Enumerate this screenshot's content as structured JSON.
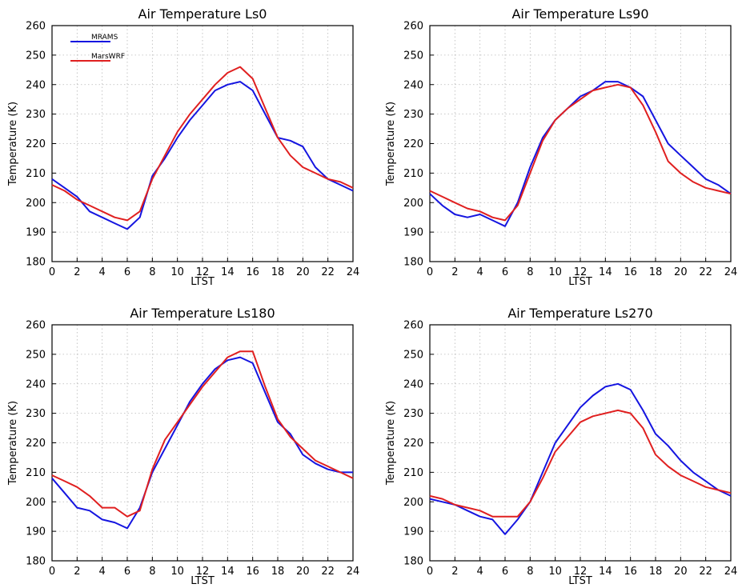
{
  "figure": {
    "legend": {
      "entries": [
        "MRAMS",
        "MarsWRF"
      ],
      "placement": "top-left"
    },
    "colors": {
      "MRAMS": "#1515e0",
      "MarsWRF": "#e02020"
    }
  },
  "chart_data": [
    {
      "type": "line",
      "title": "Air Temperature Ls0",
      "xlabel": "LTST",
      "ylabel": "Temperature (K)",
      "xlim": [
        0,
        24
      ],
      "ylim": [
        180,
        260
      ],
      "xticks": [
        "0",
        "2",
        "4",
        "6",
        "8",
        "10",
        "12",
        "14",
        "16",
        "18",
        "20",
        "22",
        "24"
      ],
      "yticks": [
        "180",
        "190",
        "200",
        "210",
        "220",
        "230",
        "240",
        "250",
        "260"
      ],
      "grid": true,
      "x": [
        0,
        1,
        2,
        3,
        4,
        5,
        6,
        7,
        8,
        9,
        10,
        11,
        12,
        13,
        14,
        15,
        16,
        17,
        18,
        19,
        20,
        21,
        22,
        23,
        24
      ],
      "series": [
        {
          "name": "MRAMS",
          "values": [
            208,
            205,
            202,
            197,
            195,
            193,
            191,
            195,
            209,
            215,
            222,
            228,
            233,
            238,
            240,
            241,
            238,
            230,
            222,
            221,
            219,
            212,
            208,
            206,
            204
          ]
        },
        {
          "name": "MarsWRF",
          "values": [
            206,
            204,
            201,
            199,
            197,
            195,
            194,
            197,
            208,
            216,
            224,
            230,
            235,
            240,
            244,
            246,
            242,
            232,
            222,
            216,
            212,
            210,
            208,
            207,
            205
          ]
        }
      ]
    },
    {
      "type": "line",
      "title": "Air Temperature Ls90",
      "xlabel": "LTST",
      "ylabel": "Temperature (K)",
      "xlim": [
        0,
        24
      ],
      "ylim": [
        180,
        260
      ],
      "xticks": [
        "0",
        "2",
        "4",
        "6",
        "8",
        "10",
        "12",
        "14",
        "16",
        "18",
        "20",
        "22",
        "24"
      ],
      "yticks": [
        "180",
        "190",
        "200",
        "210",
        "220",
        "230",
        "240",
        "250",
        "260"
      ],
      "grid": true,
      "x": [
        0,
        1,
        2,
        3,
        4,
        5,
        6,
        7,
        8,
        9,
        10,
        11,
        12,
        13,
        14,
        15,
        16,
        17,
        18,
        19,
        20,
        21,
        22,
        23,
        24
      ],
      "series": [
        {
          "name": "MRAMS",
          "values": [
            203,
            199,
            196,
            195,
            196,
            194,
            192,
            200,
            212,
            222,
            228,
            232,
            236,
            238,
            241,
            241,
            239,
            236,
            228,
            220,
            216,
            212,
            208,
            206,
            203
          ]
        },
        {
          "name": "MarsWRF",
          "values": [
            204,
            202,
            200,
            198,
            197,
            195,
            194,
            199,
            210,
            221,
            228,
            232,
            235,
            238,
            239,
            240,
            239,
            233,
            224,
            214,
            210,
            207,
            205,
            204,
            203
          ]
        }
      ]
    },
    {
      "type": "line",
      "title": "Air Temperature Ls180",
      "xlabel": "LTST",
      "ylabel": "Temperature (K)",
      "xlim": [
        0,
        24
      ],
      "ylim": [
        180,
        260
      ],
      "xticks": [
        "0",
        "2",
        "4",
        "6",
        "8",
        "10",
        "12",
        "14",
        "16",
        "18",
        "20",
        "22",
        "24"
      ],
      "yticks": [
        "180",
        "190",
        "200",
        "210",
        "220",
        "230",
        "240",
        "250",
        "260"
      ],
      "grid": true,
      "x": [
        0,
        1,
        2,
        3,
        4,
        5,
        6,
        7,
        8,
        9,
        10,
        11,
        12,
        13,
        14,
        15,
        16,
        17,
        18,
        19,
        20,
        21,
        22,
        23,
        24
      ],
      "series": [
        {
          "name": "MRAMS",
          "values": [
            208,
            203,
            198,
            197,
            194,
            193,
            191,
            198,
            210,
            218,
            226,
            234,
            240,
            245,
            248,
            249,
            247,
            237,
            227,
            223,
            216,
            213,
            211,
            210,
            210
          ]
        },
        {
          "name": "MarsWRF",
          "values": [
            209,
            207,
            205,
            202,
            198,
            198,
            195,
            197,
            211,
            221,
            227,
            233,
            239,
            244,
            249,
            251,
            251,
            239,
            228,
            222,
            218,
            214,
            212,
            210,
            208
          ]
        }
      ]
    },
    {
      "type": "line",
      "title": "Air Temperature Ls270",
      "xlabel": "LTST",
      "ylabel": "Temperature (K)",
      "xlim": [
        0,
        24
      ],
      "ylim": [
        180,
        260
      ],
      "xticks": [
        "0",
        "2",
        "4",
        "6",
        "8",
        "10",
        "12",
        "14",
        "16",
        "18",
        "20",
        "22",
        "24"
      ],
      "yticks": [
        "180",
        "190",
        "200",
        "210",
        "220",
        "230",
        "240",
        "250",
        "260"
      ],
      "grid": true,
      "x": [
        0,
        1,
        2,
        3,
        4,
        5,
        6,
        7,
        8,
        9,
        10,
        11,
        12,
        13,
        14,
        15,
        16,
        17,
        18,
        19,
        20,
        21,
        22,
        23,
        24
      ],
      "series": [
        {
          "name": "MRAMS",
          "values": [
            201,
            200,
            199,
            197,
            195,
            194,
            189,
            194,
            200,
            210,
            220,
            226,
            232,
            236,
            239,
            240,
            238,
            231,
            223,
            219,
            214,
            210,
            207,
            204,
            202
          ]
        },
        {
          "name": "MarsWRF",
          "values": [
            202,
            201,
            199,
            198,
            197,
            195,
            195,
            195,
            200,
            208,
            217,
            222,
            227,
            229,
            230,
            231,
            230,
            225,
            216,
            212,
            209,
            207,
            205,
            204,
            203
          ]
        }
      ]
    }
  ]
}
